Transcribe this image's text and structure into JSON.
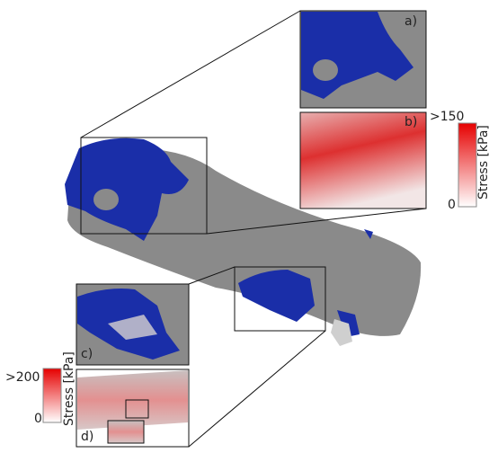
{
  "panels": [
    {
      "label": "a)"
    },
    {
      "label": "b)"
    },
    {
      "label": "c)"
    },
    {
      "label": "d)"
    }
  ],
  "colorbars": [
    {
      "max_label": ">150",
      "min_label": "0",
      "title": "Stress [kPa]"
    },
    {
      "max_label": ">200",
      "min_label": "0",
      "title": "Stress [kPa]"
    }
  ]
}
